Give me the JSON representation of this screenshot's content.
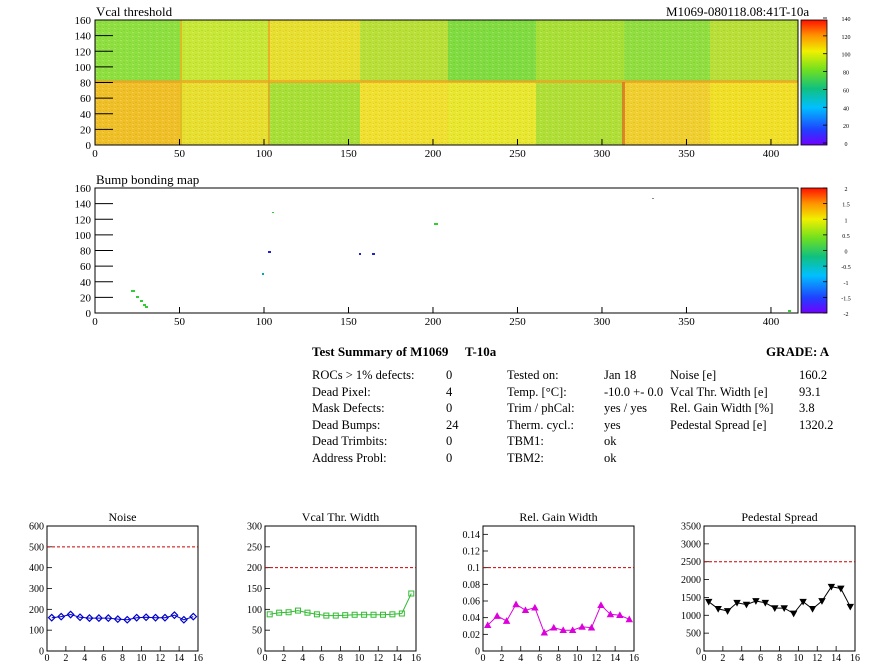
{
  "vcal_map": {
    "title": "Vcal threshold",
    "module_id": "M1069-080118.08:41T-10a",
    "x_ticks": [
      "0",
      "50",
      "100",
      "150",
      "200",
      "250",
      "300",
      "350",
      "400"
    ],
    "y_ticks": [
      "0",
      "20",
      "40",
      "60",
      "80",
      "100",
      "120",
      "140",
      "160"
    ],
    "colorbar_ticks": [
      "0",
      "20",
      "40",
      "60",
      "80",
      "100",
      "120",
      "140"
    ]
  },
  "bump_map": {
    "title": "Bump bonding map",
    "x_ticks": [
      "0",
      "50",
      "100",
      "150",
      "200",
      "250",
      "300",
      "350",
      "400"
    ],
    "y_ticks": [
      "0",
      "20",
      "40",
      "60",
      "80",
      "100",
      "120",
      "140",
      "160"
    ],
    "colorbar_ticks": [
      "-2",
      "-1.5",
      "-1",
      "-0.5",
      "0",
      "0.5",
      "1",
      "1.5",
      "2"
    ]
  },
  "summary": {
    "title": "Test Summary of M1069",
    "temp_label": "T-10a",
    "grade": "GRADE:  A",
    "col1": [
      {
        "label": "ROCs > 1% defects:",
        "value": "0"
      },
      {
        "label": "Dead Pixel:",
        "value": "4"
      },
      {
        "label": "Mask Defects:",
        "value": "0"
      },
      {
        "label": "Dead Bumps:",
        "value": "24"
      },
      {
        "label": "Dead Trimbits:",
        "value": "0"
      },
      {
        "label": "Address Probl:",
        "value": "0"
      }
    ],
    "col2": [
      {
        "label": "Tested on:",
        "value": "Jan 18"
      },
      {
        "label": "Temp. [°C]:",
        "value": "-10.0 +- 0.0"
      },
      {
        "label": "Trim / phCal:",
        "value": "yes / yes"
      },
      {
        "label": "Therm. cycl.:",
        "value": "yes"
      },
      {
        "label": "TBM1:",
        "value": "ok"
      },
      {
        "label": "TBM2:",
        "value": "ok"
      }
    ],
    "col3": [
      {
        "label": "Noise [e]",
        "value": "160.2"
      },
      {
        "label": "Vcal Thr. Width [e]",
        "value": "93.1"
      },
      {
        "label": "Rel. Gain Width [%]",
        "value": "3.8"
      },
      {
        "label": "Pedestal Spread [e]",
        "value": "1320.2"
      }
    ]
  },
  "chart_data": [
    {
      "type": "scatter",
      "title": "Noise",
      "x": [
        0,
        1,
        2,
        3,
        4,
        5,
        6,
        7,
        8,
        9,
        10,
        11,
        12,
        13,
        14,
        15
      ],
      "values": [
        160,
        165,
        175,
        162,
        158,
        158,
        158,
        153,
        150,
        160,
        162,
        160,
        160,
        172,
        150,
        165
      ],
      "ylim": [
        0,
        600
      ],
      "yticks": [
        0,
        100,
        200,
        300,
        400,
        500,
        600
      ],
      "xticks": [
        0,
        2,
        4,
        6,
        8,
        10,
        12,
        14,
        16
      ],
      "limit": 500,
      "marker": "diamond",
      "color": "#0000cc"
    },
    {
      "type": "line",
      "title": "Vcal Thr. Width",
      "x": [
        0,
        1,
        2,
        3,
        4,
        5,
        6,
        7,
        8,
        9,
        10,
        11,
        12,
        13,
        14,
        15
      ],
      "values": [
        88,
        92,
        93,
        97,
        92,
        88,
        85,
        85,
        86,
        87,
        87,
        87,
        87,
        88,
        90,
        138
      ],
      "ylim": [
        0,
        300
      ],
      "yticks": [
        0,
        50,
        100,
        150,
        200,
        250,
        300
      ],
      "xticks": [
        0,
        2,
        4,
        6,
        8,
        10,
        12,
        14,
        16
      ],
      "limit": 200,
      "marker": "square",
      "color": "#33bb33"
    },
    {
      "type": "line",
      "title": "Rel. Gain Width",
      "x": [
        0,
        1,
        2,
        3,
        4,
        5,
        6,
        7,
        8,
        9,
        10,
        11,
        12,
        13,
        14,
        15
      ],
      "values": [
        0.031,
        0.042,
        0.036,
        0.056,
        0.049,
        0.052,
        0.022,
        0.028,
        0.025,
        0.025,
        0.029,
        0.028,
        0.055,
        0.044,
        0.043,
        0.038
      ],
      "ylim": [
        0,
        0.15
      ],
      "yticks": [
        0,
        0.02,
        0.04,
        0.06,
        0.08,
        0.1,
        0.12,
        0.14
      ],
      "xticks": [
        0,
        2,
        4,
        6,
        8,
        10,
        12,
        14,
        16
      ],
      "limit": 0.1,
      "marker": "triangle",
      "color": "#dd00dd"
    },
    {
      "type": "line",
      "title": "Pedestal Spread",
      "x": [
        0,
        1,
        2,
        3,
        4,
        5,
        6,
        7,
        8,
        9,
        10,
        11,
        12,
        13,
        14,
        15
      ],
      "values": [
        1380,
        1180,
        1120,
        1350,
        1300,
        1400,
        1350,
        1200,
        1200,
        1050,
        1380,
        1180,
        1400,
        1800,
        1750,
        1240
      ],
      "ylim": [
        0,
        3500
      ],
      "yticks": [
        0,
        500,
        1000,
        1500,
        2000,
        2500,
        3000,
        3500
      ],
      "xticks": [
        0,
        2,
        4,
        6,
        8,
        10,
        12,
        14,
        16
      ],
      "limit": 2500,
      "marker": "triangle-down",
      "color": "#000000"
    }
  ]
}
